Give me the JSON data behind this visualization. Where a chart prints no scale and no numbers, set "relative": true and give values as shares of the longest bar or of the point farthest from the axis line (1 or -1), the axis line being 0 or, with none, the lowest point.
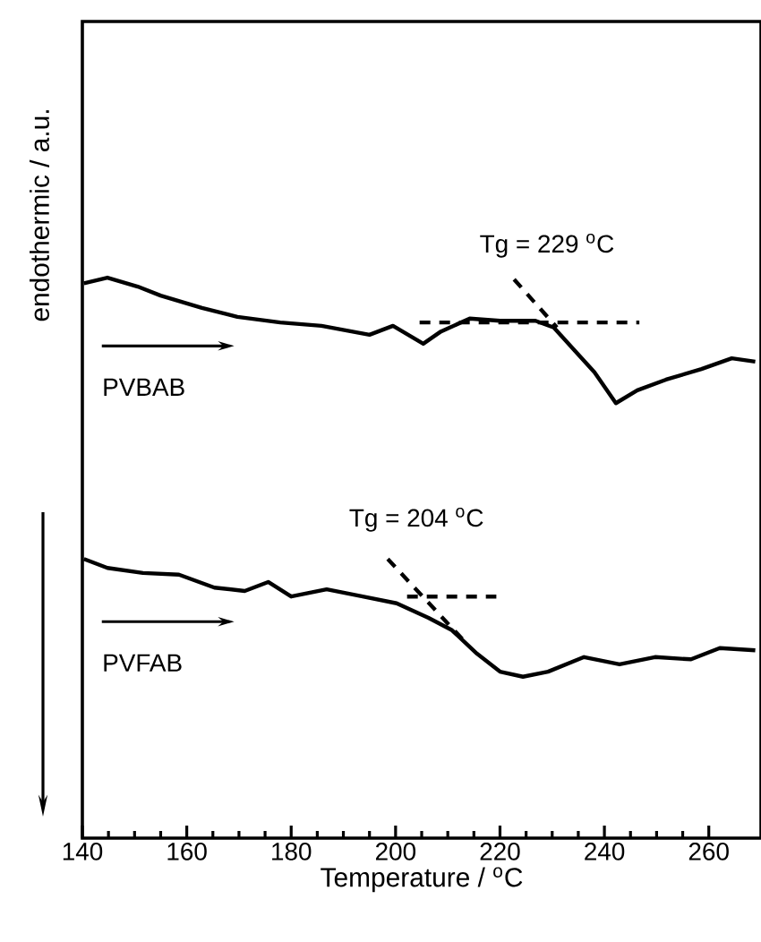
{
  "chart_data": {
    "type": "line",
    "relative": true,
    "xlabel": "Temperature / $^{o}$C",
    "ylabel": "endothermic / a.u.",
    "xlim": [
      140,
      270
    ],
    "xticks": [
      140,
      160,
      180,
      200,
      220,
      240,
      260
    ],
    "annotations": [
      {
        "text": "Tg = 229 $^{o}$C",
        "x": 229,
        "y": 0.92
      },
      {
        "text": "Tg = 204 $^{o}$C",
        "x": 204,
        "y": 0.431
      }
    ],
    "series": [
      {
        "name": "PVBAB",
        "color": "#000000",
        "line_style": "solid",
        "x": [
          140.3,
          144.8,
          150.6,
          155.0,
          162.9,
          169.7,
          177.9,
          185.8,
          195.0,
          199.5,
          205.3,
          208.7,
          214.2,
          220.0,
          226.8,
          230.3,
          234.7,
          238.1,
          242.2,
          246.3,
          251.8,
          258.6,
          264.4,
          268.9
        ],
        "values": [
          0.99,
          1.0,
          0.984,
          0.968,
          0.946,
          0.93,
          0.92,
          0.914,
          0.898,
          0.914,
          0.882,
          0.904,
          0.927,
          0.923,
          0.923,
          0.911,
          0.866,
          0.831,
          0.776,
          0.799,
          0.818,
          0.837,
          0.856,
          0.85
        ]
      },
      {
        "name": "PVFAB",
        "color": "#000000",
        "line_style": "solid",
        "x": [
          140.3,
          144.8,
          151.6,
          158.5,
          165.3,
          171.1,
          175.6,
          180.0,
          186.8,
          193.7,
          200.2,
          206.3,
          210.8,
          215.6,
          220.0,
          224.4,
          229.2,
          236.1,
          242.9,
          249.7,
          256.6,
          262.1,
          268.9
        ],
        "values": [
          0.498,
          0.482,
          0.473,
          0.47,
          0.447,
          0.441,
          0.457,
          0.431,
          0.444,
          0.431,
          0.419,
          0.393,
          0.371,
          0.329,
          0.297,
          0.288,
          0.297,
          0.323,
          0.31,
          0.323,
          0.319,
          0.339,
          0.335
        ]
      },
      {
        "color": "#000000",
        "line_style": "dashed",
        "x": [
          204.6,
          246.7
        ],
        "values": [
          0.92,
          0.92
        ]
      },
      {
        "color": "#000000",
        "line_style": "dashed",
        "x": [
          222.7,
          230.9
        ],
        "values": [
          0.997,
          0.911
        ]
      },
      {
        "color": "#000000",
        "line_style": "dashed",
        "x": [
          202.2,
          219.3
        ],
        "values": [
          0.431,
          0.431
        ]
      },
      {
        "color": "#000000",
        "line_style": "dashed",
        "x": [
          198.5,
          213.2
        ],
        "values": [
          0.498,
          0.351
        ]
      }
    ]
  }
}
